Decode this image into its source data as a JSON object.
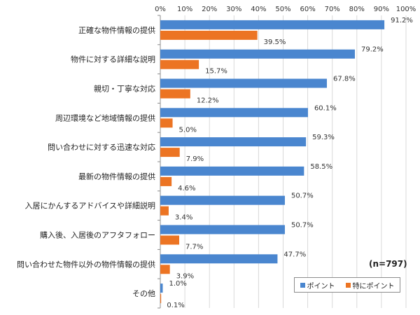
{
  "chart_data": {
    "type": "bar",
    "orientation": "horizontal",
    "categories": [
      "正確な物件情報の提供",
      "物件に対する詳細な説明",
      "親切・丁寧な対応",
      "周辺環境など地域情報の提供",
      "問い合わせに対する迅速な対応",
      "最新の物件情報の提供",
      "入居にかんするアドバイスや詳細説明",
      "購入後、入居後のアフタフォロー",
      "問い合わせた物件以外の物件情報の提供",
      "その他"
    ],
    "series": [
      {
        "name": "ポイント",
        "color": "#4a86cf",
        "values": [
          91.2,
          79.2,
          67.8,
          60.1,
          59.3,
          58.5,
          50.7,
          50.7,
          47.7,
          1.0
        ],
        "labels": [
          "91.2%",
          "79.2%",
          "67.8%",
          "60.1%",
          "59.3%",
          "58.5%",
          "50.7%",
          "50.7%",
          "47.7%",
          "1.0%"
        ]
      },
      {
        "name": "特にポイント",
        "color": "#ec7423",
        "values": [
          39.5,
          15.7,
          12.2,
          5.0,
          7.9,
          4.6,
          3.4,
          7.7,
          3.9,
          0.1
        ],
        "labels": [
          "39.5%",
          "15.7%",
          "12.2%",
          "5.0%",
          "7.9%",
          "4.6%",
          "3.4%",
          "7.7%",
          "3.9%",
          "0.1%"
        ]
      }
    ],
    "xlim": [
      0,
      100
    ],
    "xticks": [
      0,
      10,
      20,
      30,
      40,
      50,
      60,
      70,
      80,
      90,
      100
    ],
    "xtick_labels": [
      "0%",
      "10%",
      "20%",
      "30%",
      "40%",
      "50%",
      "60%",
      "70%",
      "80%",
      "90%",
      "100%"
    ],
    "grid": true,
    "legend_position": "bottom-right",
    "annotation": "(n=797)"
  }
}
